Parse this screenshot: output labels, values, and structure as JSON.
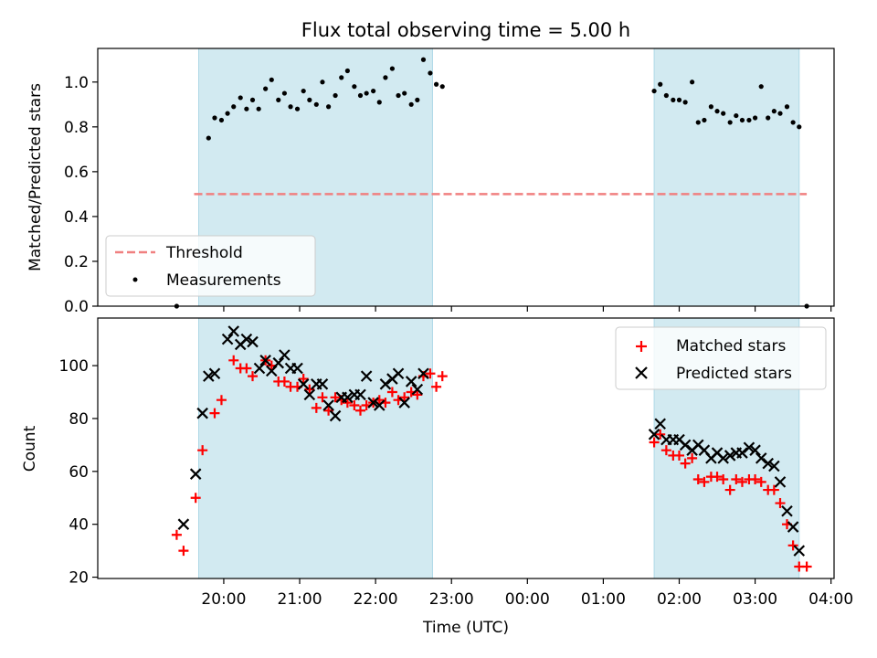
{
  "colors": {
    "band": "#add8e6",
    "threshold": "#f08080",
    "measurements": "#000000",
    "matched": "#ff0000",
    "predicted": "#000000"
  },
  "chart_data": [
    {
      "type": "scatter",
      "title": "Flux total observing time = 5.00 h",
      "xlabel": "",
      "ylabel": "Matched/Predicted stars",
      "ylim": [
        0,
        1.15
      ],
      "yticks": [
        0.0,
        0.2,
        0.4,
        0.6,
        0.8,
        1.0
      ],
      "x_unit": "hours since 19:00 UTC",
      "shaded_bands": [
        [
          0.67,
          3.75
        ],
        [
          6.67,
          8.58
        ]
      ],
      "threshold": 0.5,
      "legend_position": "lower-left",
      "legend": [
        {
          "label": "Threshold",
          "kind": "dash"
        },
        {
          "label": "Measurements",
          "kind": "dot"
        }
      ],
      "series": [
        {
          "name": "Measurements",
          "points": [
            [
              0.38,
              0.0
            ],
            [
              0.8,
              0.75
            ],
            [
              0.88,
              0.84
            ],
            [
              0.97,
              0.83
            ],
            [
              1.05,
              0.86
            ],
            [
              1.13,
              0.89
            ],
            [
              1.22,
              0.93
            ],
            [
              1.3,
              0.88
            ],
            [
              1.38,
              0.92
            ],
            [
              1.46,
              0.88
            ],
            [
              1.55,
              0.97
            ],
            [
              1.63,
              1.01
            ],
            [
              1.72,
              0.92
            ],
            [
              1.8,
              0.95
            ],
            [
              1.88,
              0.89
            ],
            [
              1.97,
              0.88
            ],
            [
              2.05,
              0.96
            ],
            [
              2.13,
              0.92
            ],
            [
              2.22,
              0.9
            ],
            [
              2.3,
              1.0
            ],
            [
              2.38,
              0.89
            ],
            [
              2.47,
              0.94
            ],
            [
              2.55,
              1.02
            ],
            [
              2.63,
              1.05
            ],
            [
              2.72,
              0.98
            ],
            [
              2.8,
              0.94
            ],
            [
              2.88,
              0.95
            ],
            [
              2.97,
              0.96
            ],
            [
              3.05,
              0.91
            ],
            [
              3.13,
              1.02
            ],
            [
              3.22,
              1.06
            ],
            [
              3.3,
              0.94
            ],
            [
              3.38,
              0.95
            ],
            [
              3.47,
              0.9
            ],
            [
              3.55,
              0.92
            ],
            [
              3.63,
              1.1
            ],
            [
              3.72,
              1.04
            ],
            [
              3.8,
              0.99
            ],
            [
              3.88,
              0.98
            ],
            [
              6.67,
              0.96
            ],
            [
              6.75,
              0.99
            ],
            [
              6.83,
              0.94
            ],
            [
              6.92,
              0.92
            ],
            [
              7.0,
              0.92
            ],
            [
              7.08,
              0.91
            ],
            [
              7.17,
              1.0
            ],
            [
              7.25,
              0.82
            ],
            [
              7.33,
              0.83
            ],
            [
              7.42,
              0.89
            ],
            [
              7.5,
              0.87
            ],
            [
              7.58,
              0.86
            ],
            [
              7.67,
              0.82
            ],
            [
              7.75,
              0.85
            ],
            [
              7.83,
              0.83
            ],
            [
              7.92,
              0.83
            ],
            [
              8.0,
              0.84
            ],
            [
              8.08,
              0.98
            ],
            [
              8.17,
              0.84
            ],
            [
              8.25,
              0.87
            ],
            [
              8.33,
              0.86
            ],
            [
              8.42,
              0.89
            ],
            [
              8.5,
              0.82
            ],
            [
              8.58,
              0.8
            ],
            [
              8.68,
              0.0
            ]
          ]
        }
      ]
    },
    {
      "type": "scatter",
      "title": "",
      "xlabel": "Time (UTC)",
      "ylabel": "Count",
      "ylim": [
        19.5,
        118
      ],
      "yticks": [
        20,
        40,
        60,
        80,
        100
      ],
      "xlim": [
        -0.66,
        9.04
      ],
      "x_unit": "hours since 19:00 UTC",
      "x_tick_values": [
        1,
        2,
        3,
        4,
        5,
        6,
        7,
        8,
        9
      ],
      "xticks": [
        "20:00",
        "21:00",
        "22:00",
        "23:00",
        "00:00",
        "01:00",
        "02:00",
        "03:00",
        "04:00"
      ],
      "shaded_bands": [
        [
          0.67,
          3.75
        ],
        [
          6.67,
          8.58
        ]
      ],
      "legend_position": "upper-right",
      "legend": [
        {
          "label": "Matched stars",
          "kind": "plus"
        },
        {
          "label": "Predicted stars",
          "kind": "x"
        }
      ],
      "series": [
        {
          "name": "Matched stars",
          "points": [
            [
              0.38,
              36
            ],
            [
              0.47,
              30
            ],
            [
              0.63,
              50
            ],
            [
              0.72,
              68
            ],
            [
              0.88,
              82
            ],
            [
              0.97,
              87
            ],
            [
              1.13,
              102
            ],
            [
              1.22,
              99
            ],
            [
              1.3,
              99
            ],
            [
              1.38,
              96
            ],
            [
              1.55,
              102
            ],
            [
              1.63,
              100
            ],
            [
              1.72,
              94
            ],
            [
              1.8,
              94
            ],
            [
              1.88,
              92
            ],
            [
              1.97,
              92
            ],
            [
              2.05,
              95
            ],
            [
              2.13,
              91
            ],
            [
              2.22,
              84
            ],
            [
              2.3,
              88
            ],
            [
              2.38,
              83
            ],
            [
              2.47,
              88
            ],
            [
              2.55,
              87
            ],
            [
              2.63,
              86
            ],
            [
              2.72,
              85
            ],
            [
              2.8,
              83
            ],
            [
              2.88,
              85
            ],
            [
              2.97,
              86
            ],
            [
              3.05,
              87
            ],
            [
              3.13,
              86
            ],
            [
              3.22,
              90
            ],
            [
              3.3,
              87
            ],
            [
              3.38,
              88
            ],
            [
              3.47,
              90
            ],
            [
              3.55,
              89
            ],
            [
              3.63,
              96
            ],
            [
              3.72,
              97
            ],
            [
              3.8,
              92
            ],
            [
              3.88,
              96
            ],
            [
              6.67,
              71
            ],
            [
              6.75,
              74
            ],
            [
              6.83,
              68
            ],
            [
              6.92,
              66
            ],
            [
              7.0,
              66
            ],
            [
              7.08,
              63
            ],
            [
              7.17,
              65
            ],
            [
              7.25,
              57
            ],
            [
              7.33,
              56
            ],
            [
              7.42,
              58
            ],
            [
              7.5,
              58
            ],
            [
              7.58,
              57
            ],
            [
              7.67,
              53
            ],
            [
              7.75,
              57
            ],
            [
              7.83,
              56
            ],
            [
              7.92,
              57
            ],
            [
              8.0,
              57
            ],
            [
              8.08,
              56
            ],
            [
              8.17,
              53
            ],
            [
              8.25,
              53
            ],
            [
              8.33,
              48
            ],
            [
              8.42,
              40
            ],
            [
              8.5,
              32
            ],
            [
              8.58,
              24
            ],
            [
              8.68,
              24
            ]
          ]
        },
        {
          "name": "Predicted stars",
          "points": [
            [
              0.47,
              40
            ],
            [
              0.63,
              59
            ],
            [
              0.72,
              82
            ],
            [
              0.8,
              96
            ],
            [
              0.88,
              97
            ],
            [
              1.05,
              110
            ],
            [
              1.13,
              113
            ],
            [
              1.22,
              108
            ],
            [
              1.3,
              110
            ],
            [
              1.38,
              109
            ],
            [
              1.47,
              99
            ],
            [
              1.55,
              102
            ],
            [
              1.63,
              98
            ],
            [
              1.72,
              101
            ],
            [
              1.8,
              104
            ],
            [
              1.88,
              99
            ],
            [
              1.97,
              99
            ],
            [
              2.05,
              93
            ],
            [
              2.13,
              89
            ],
            [
              2.22,
              93
            ],
            [
              2.3,
              93
            ],
            [
              2.38,
              85
            ],
            [
              2.47,
              81
            ],
            [
              2.55,
              88
            ],
            [
              2.63,
              88
            ],
            [
              2.72,
              89
            ],
            [
              2.8,
              89
            ],
            [
              2.88,
              96
            ],
            [
              2.97,
              86
            ],
            [
              3.05,
              85
            ],
            [
              3.13,
              93
            ],
            [
              3.22,
              95
            ],
            [
              3.3,
              97
            ],
            [
              3.38,
              86
            ],
            [
              3.47,
              94
            ],
            [
              3.55,
              91
            ],
            [
              3.63,
              97
            ],
            [
              6.67,
              74
            ],
            [
              6.75,
              78
            ],
            [
              6.83,
              72
            ],
            [
              6.92,
              72
            ],
            [
              7.0,
              72
            ],
            [
              7.08,
              70
            ],
            [
              7.17,
              68
            ],
            [
              7.25,
              70
            ],
            [
              7.33,
              68
            ],
            [
              7.42,
              65
            ],
            [
              7.5,
              67
            ],
            [
              7.58,
              65
            ],
            [
              7.67,
              66
            ],
            [
              7.75,
              67
            ],
            [
              7.83,
              67
            ],
            [
              7.92,
              69
            ],
            [
              8.0,
              68
            ],
            [
              8.08,
              65
            ],
            [
              8.17,
              63
            ],
            [
              8.25,
              62
            ],
            [
              8.33,
              56
            ],
            [
              8.42,
              45
            ],
            [
              8.5,
              39
            ],
            [
              8.58,
              30
            ]
          ]
        }
      ]
    }
  ]
}
